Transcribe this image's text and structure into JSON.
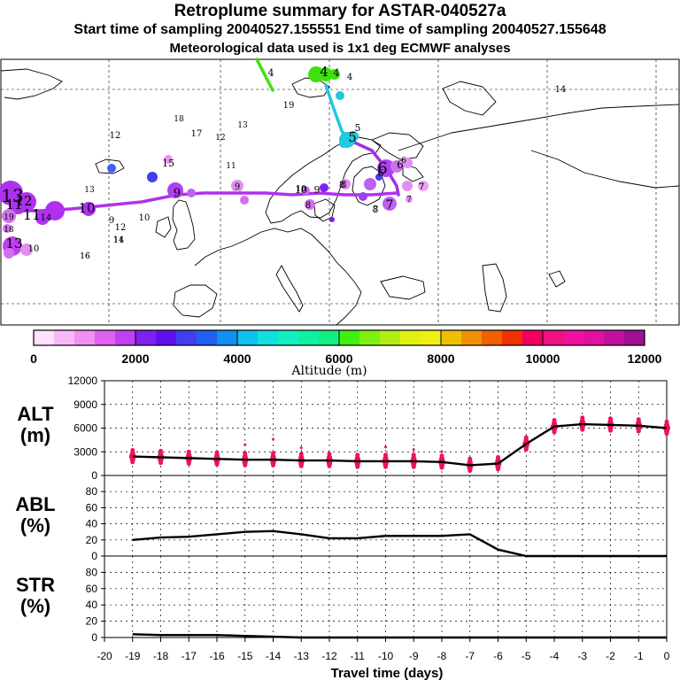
{
  "header": {
    "title": "Retroplume summary for ASTAR-040527a",
    "sampling_line": "Start time of sampling 20040527.155551     End time of sampling 20040527.155648",
    "met_line": "Meteorological data used is 1x1 deg ECMWF analyses"
  },
  "colorbar": {
    "label": "Altitude (m)",
    "ticks": [
      "0",
      "2000",
      "4000",
      "6000",
      "8000",
      "10000",
      "12000"
    ],
    "colors": [
      "#ffe0ff",
      "#f8b8f8",
      "#f090f0",
      "#e060f0",
      "#c040f0",
      "#8020f0",
      "#6010f0",
      "#4040f0",
      "#2060f0",
      "#1090f0",
      "#10c0f0",
      "#10e0e0",
      "#10f0c0",
      "#10f0a0",
      "#10f080",
      "#40f010",
      "#80f010",
      "#b0f010",
      "#e0f010",
      "#f0f010",
      "#f0c000",
      "#f09000",
      "#f06000",
      "#f03000",
      "#f00060",
      "#f01080",
      "#f010a0",
      "#e010a0",
      "#c010a0",
      "#a01090"
    ]
  },
  "map": {
    "track_labels": [
      {
        "text": "4",
        "color": "#000000"
      },
      {
        "text": "4",
        "color": "#000000"
      },
      {
        "text": "4",
        "color": "#000000"
      },
      {
        "text": "4",
        "color": "#000000"
      },
      {
        "text": "5",
        "color": "#000000"
      },
      {
        "text": "5",
        "color": "#000000"
      },
      {
        "text": "6",
        "color": "#000000"
      },
      {
        "text": "6",
        "color": "#000000"
      },
      {
        "text": "7",
        "color": "#000000"
      },
      {
        "text": "7",
        "color": "#000000"
      },
      {
        "text": "8",
        "color": "#000000"
      },
      {
        "text": "8",
        "color": "#000000"
      },
      {
        "text": "9",
        "color": "#000000"
      },
      {
        "text": "9",
        "color": "#000000"
      },
      {
        "text": "10",
        "color": "#000000"
      },
      {
        "text": "10",
        "color": "#000000"
      },
      {
        "text": "11",
        "color": "#000000"
      },
      {
        "text": "12",
        "color": "#000000"
      },
      {
        "text": "13",
        "color": "#000000"
      },
      {
        "text": "14",
        "color": "#000000"
      },
      {
        "text": "15",
        "color": "#000000"
      },
      {
        "text": "16",
        "color": "#000000"
      },
      {
        "text": "17",
        "color": "#000000"
      },
      {
        "text": "18",
        "color": "#000000"
      },
      {
        "text": "19",
        "color": "#000000"
      }
    ]
  },
  "chart_data": [
    {
      "type": "line",
      "name": "ALT",
      "ylabel": "ALT (m)",
      "ylabel_lines": [
        "ALT",
        "(m)"
      ],
      "x": [
        -19,
        -18,
        -17,
        -16,
        -15,
        -14,
        -13,
        -12,
        -11,
        -10,
        -9,
        -8,
        -7,
        -6,
        -5,
        -4,
        -3,
        -2,
        -1,
        0
      ],
      "values": [
        2400,
        2300,
        2200,
        2100,
        2000,
        2000,
        1900,
        1900,
        1800,
        1800,
        1800,
        1700,
        1300,
        1500,
        4000,
        6200,
        6500,
        6400,
        6300,
        6000
      ],
      "ylim": [
        0,
        12000
      ],
      "yticks": [
        "0",
        "3000",
        "6000",
        "9000",
        "12000"
      ],
      "clusters": "magenta dots at each day showing spread"
    },
    {
      "type": "line",
      "name": "ABL",
      "ylabel": "ABL (%)",
      "ylabel_lines": [
        "ABL",
        "(%)"
      ],
      "x": [
        -19,
        -18,
        -17,
        -16,
        -15,
        -14,
        -13,
        -12,
        -11,
        -10,
        -9,
        -8,
        -7,
        -6,
        -5,
        -4,
        -3,
        -2,
        -1,
        0
      ],
      "values": [
        20,
        23,
        24,
        27,
        30,
        31,
        27,
        22,
        22,
        25,
        25,
        25,
        27,
        8,
        0,
        0,
        0,
        0,
        0,
        0
      ],
      "ylim": [
        0,
        100
      ],
      "yticks": [
        "0",
        "20",
        "40",
        "60",
        "80"
      ]
    },
    {
      "type": "line",
      "name": "STR",
      "ylabel": "STR (%)",
      "ylabel_lines": [
        "STR",
        "(%)"
      ],
      "x": [
        -19,
        -18,
        -17,
        -16,
        -15,
        -14,
        -13,
        -12,
        -11,
        -10,
        -9,
        -8,
        -7,
        -6,
        -5,
        -4,
        -3,
        -2,
        -1,
        0
      ],
      "values": [
        4,
        3,
        3,
        3,
        2,
        1,
        0,
        0,
        0,
        0,
        0,
        0,
        0,
        0,
        0,
        0,
        0,
        0,
        0,
        0
      ],
      "ylim": [
        0,
        100
      ],
      "yticks": [
        "0",
        "20",
        "40",
        "60",
        "80"
      ]
    }
  ],
  "xaxis": {
    "label": "Travel time (days)",
    "ticks": [
      "-20",
      "-19",
      "-18",
      "-17",
      "-16",
      "-15",
      "-14",
      "-13",
      "-12",
      "-11",
      "-10",
      "-9",
      "-8",
      "-7",
      "-6",
      "-5",
      "-4",
      "-3",
      "-2",
      "-1",
      "0"
    ]
  }
}
